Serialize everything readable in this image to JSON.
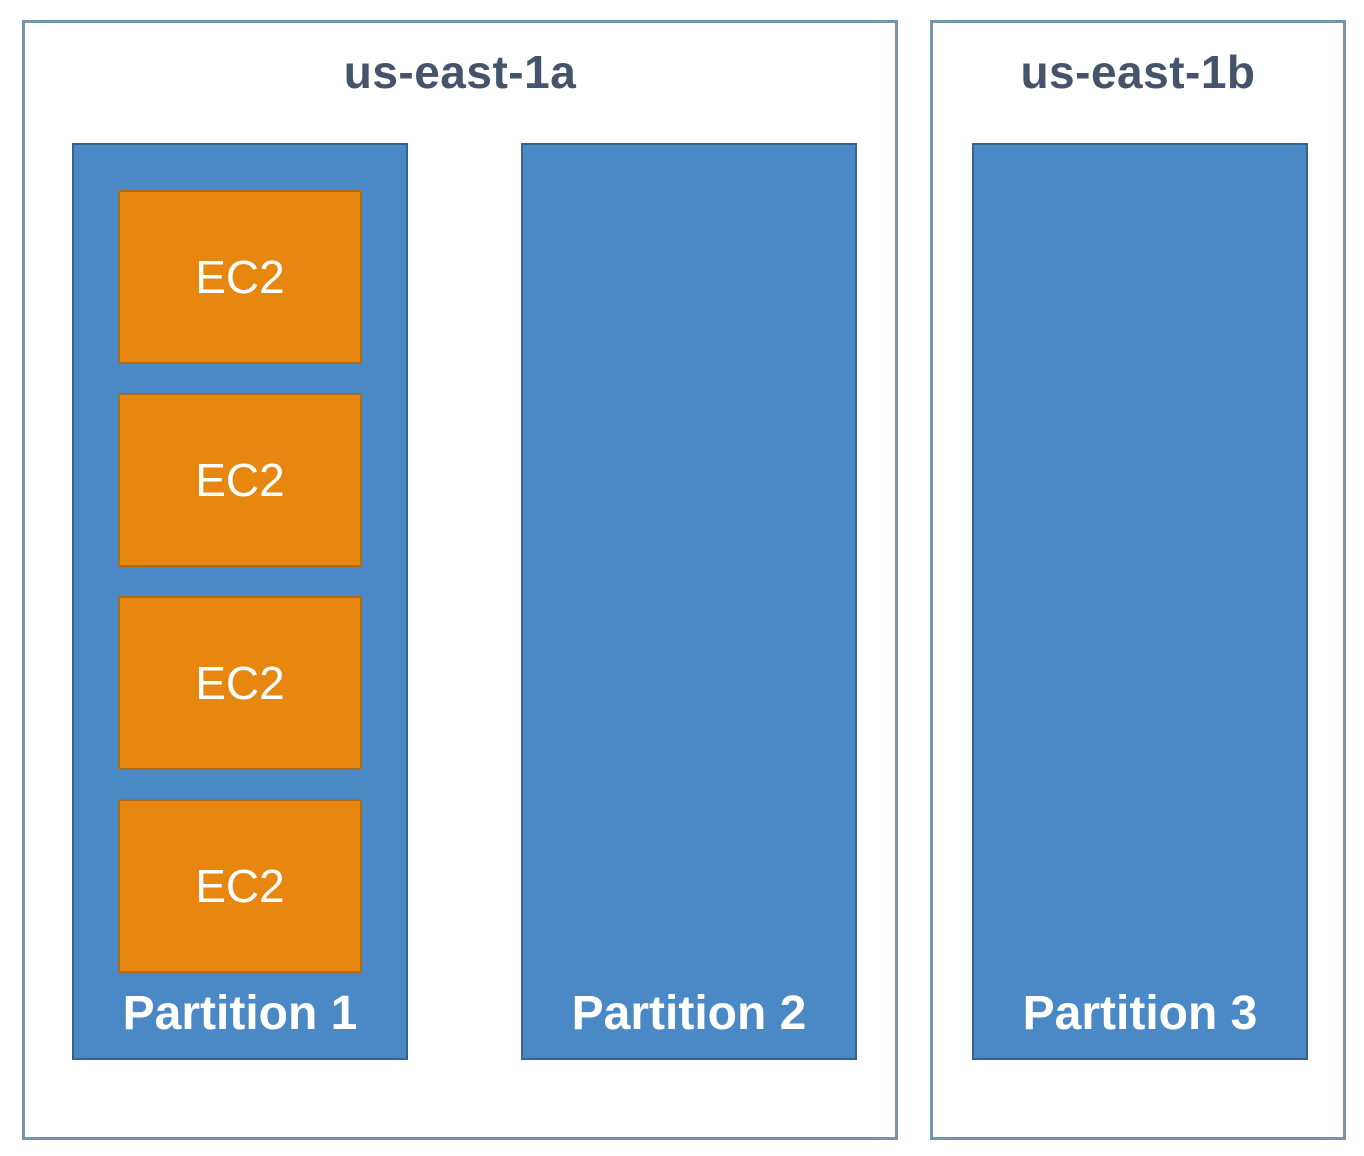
{
  "availability_zones": [
    {
      "name": "us-east-1a",
      "partitions": [
        {
          "label": "Partition 1",
          "instances": [
            {
              "label": "EC2"
            },
            {
              "label": "EC2"
            },
            {
              "label": "EC2"
            },
            {
              "label": "EC2"
            }
          ]
        },
        {
          "label": "Partition 2",
          "instances": []
        }
      ]
    },
    {
      "name": "us-east-1b",
      "partitions": [
        {
          "label": "Partition 3",
          "instances": []
        }
      ]
    }
  ],
  "colors": {
    "az_border": "#7595ad",
    "az_title": "#44546a",
    "partition_fill": "#4a88c6",
    "partition_border": "#36648f",
    "ec2_fill": "#e8870f",
    "ec2_border": "#ad6e1c",
    "label_text": "#ffffff"
  }
}
